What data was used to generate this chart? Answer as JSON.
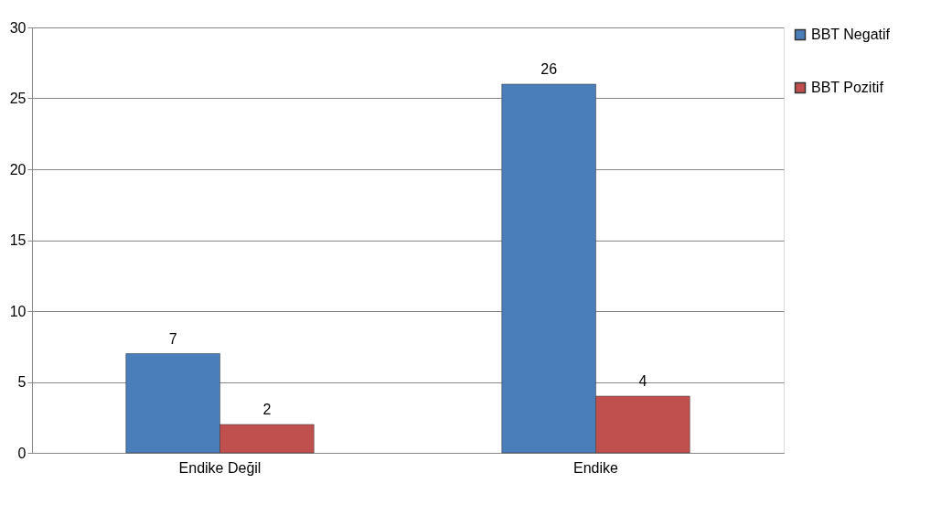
{
  "chart_data": {
    "type": "bar",
    "categories": [
      "Endike Değil",
      "Endike"
    ],
    "series": [
      {
        "name": "BBT Negatif",
        "color": "#4a7ebb",
        "values": [
          7,
          26
        ]
      },
      {
        "name": "BBT Pozitif",
        "color": "#c0504d",
        "values": [
          2,
          4
        ]
      }
    ],
    "ylim": [
      0,
      30
    ],
    "yticks": [
      0,
      5,
      10,
      15,
      20,
      25,
      30
    ],
    "grid": "y",
    "legend": "right",
    "data_labels": true
  }
}
